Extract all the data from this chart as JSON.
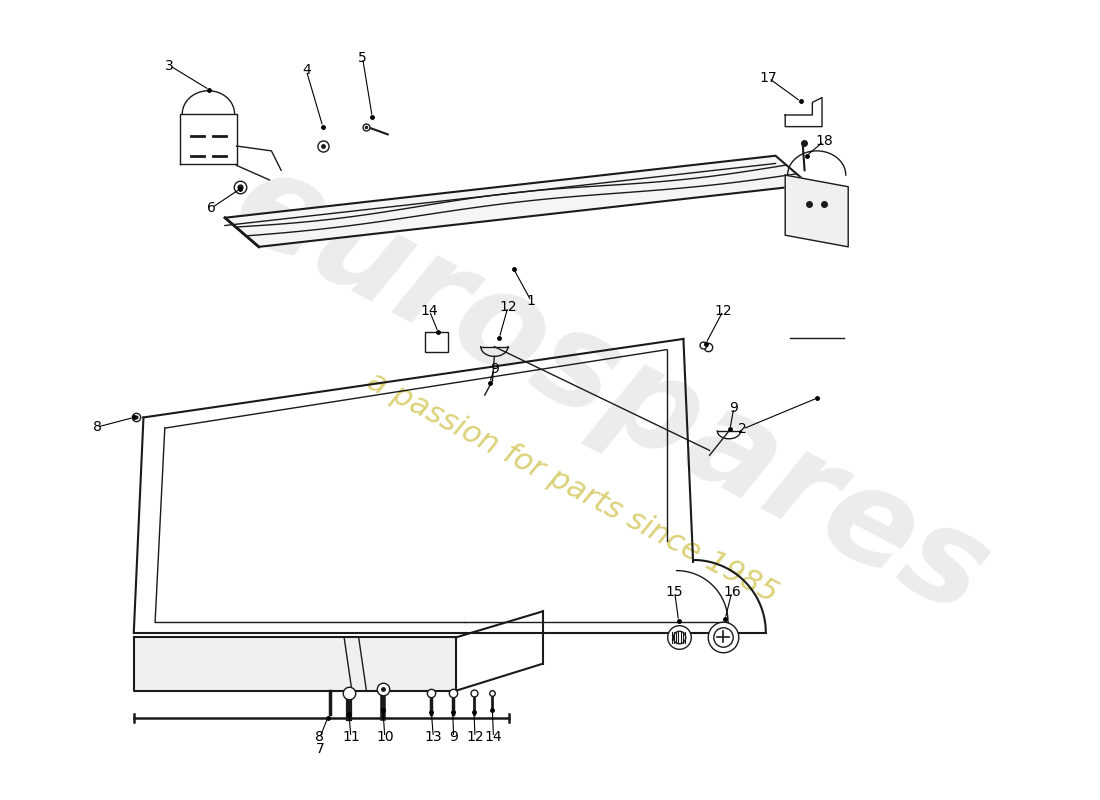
{
  "bg": "#ffffff",
  "lc": "#1a1a1a",
  "wm1": "eurospares",
  "wm2": "a passion for parts since 1985",
  "wm1_color": "#c8c8c8",
  "wm2_color": "#c8b830"
}
